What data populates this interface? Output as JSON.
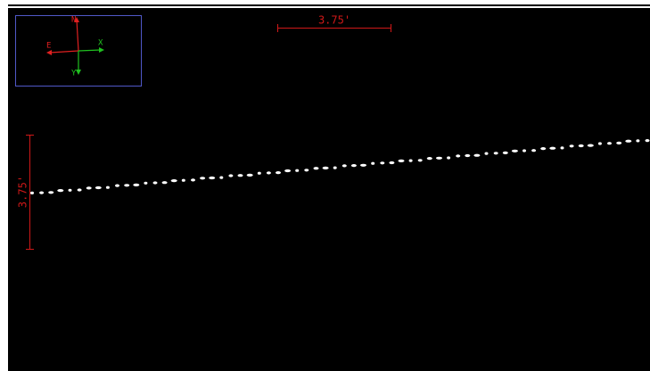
{
  "scale_bars": {
    "horizontal": "3.75'",
    "vertical": "3.75'"
  },
  "compass": {
    "north": "N",
    "east": "E",
    "x": "X",
    "y": "Y"
  }
}
